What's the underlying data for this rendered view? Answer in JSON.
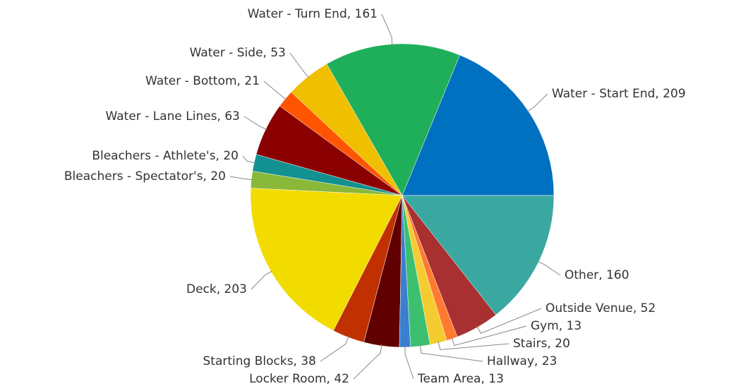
{
  "chart_data": {
    "type": "pie",
    "values": [
      209,
      161,
      53,
      21,
      63,
      20,
      20,
      203,
      38,
      42,
      13,
      23,
      20,
      13,
      52,
      160
    ],
    "value_labels": [
      "Water - Start End, 209",
      "Water - Turn End, 161",
      "Water - Side, 53",
      "Water - Bottom, 21",
      "Water - Lane Lines, 63",
      "Bleachers - Athlete's, 20",
      "Bleachers - Spectator's, 20",
      "Deck, 203",
      "Starting Blocks, 38",
      "Locker Room, 42",
      "Team Area, 13",
      "Hallway, 23",
      "Stairs, 20",
      "Gym, 13",
      "Outside Venue, 52",
      "Other, 160"
    ],
    "colors": [
      "#0070c0",
      "#1faf5a",
      "#f0c000",
      "#ff5500",
      "#8b0000",
      "#139090",
      "#8ab838",
      "#f2dc00",
      "#c03000",
      "#600000",
      "#3a7fd0",
      "#3cc070",
      "#f5cc30",
      "#ff7a30",
      "#a83030",
      "#3aa8a0"
    ]
  }
}
